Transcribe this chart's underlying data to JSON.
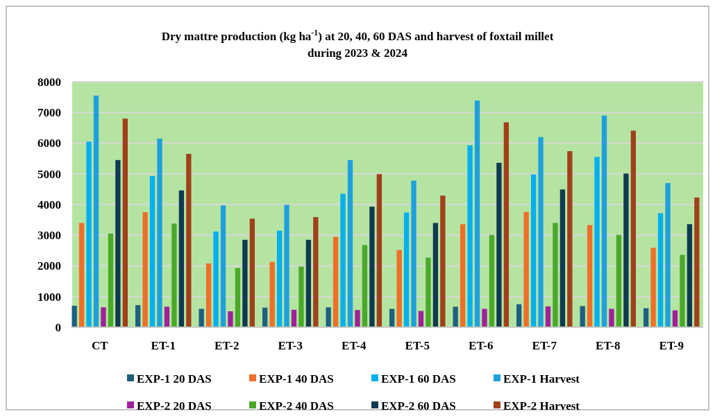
{
  "chart_data": {
    "type": "bar",
    "title": "Dry mattre production (kg ha$^{-1}$) at 20, 40, 60 DAS and harvest of foxtail millet during 2023 & 2024",
    "categories": [
      "CT",
      "ET-1",
      "ET-2",
      "ET-3",
      "ET-4",
      "ET-5",
      "ET-6",
      "ET-7",
      "ET-8",
      "ET-9"
    ],
    "series": [
      {
        "name": "EXP-1 20 DAS",
        "color": "#1f5f80",
        "values": [
          700,
          720,
          600,
          640,
          650,
          600,
          670,
          750,
          690,
          620
        ]
      },
      {
        "name": "EXP-1 40 DAS",
        "color": "#ed6f2a",
        "values": [
          3400,
          3750,
          2080,
          2130,
          2950,
          2520,
          3360,
          3760,
          3330,
          2590
        ]
      },
      {
        "name": "EXP-1 60 DAS",
        "color": "#00b0f0",
        "values": [
          6050,
          4930,
          3120,
          3150,
          4350,
          3740,
          5930,
          4980,
          5550,
          3720
        ]
      },
      {
        "name": "EXP-1 Harvest",
        "color": "#1fa0dc",
        "values": [
          7550,
          6150,
          3970,
          3990,
          5450,
          4780,
          7390,
          6200,
          6900,
          4700
        ]
      },
      {
        "name": "EXP-2 20 DAS",
        "color": "#a0209a",
        "values": [
          650,
          670,
          520,
          570,
          560,
          530,
          600,
          680,
          600,
          550
        ]
      },
      {
        "name": "EXP-2 40 DAS",
        "color": "#4aa82a",
        "values": [
          3050,
          3380,
          1930,
          1980,
          2680,
          2270,
          3010,
          3400,
          3010,
          2360
        ]
      },
      {
        "name": "EXP-2 60 DAS",
        "color": "#0f3a50",
        "values": [
          5450,
          4460,
          2850,
          2850,
          3930,
          3400,
          5360,
          4490,
          5010,
          3360
        ]
      },
      {
        "name": "EXP-2 Harvest",
        "color": "#a0401a",
        "values": [
          6800,
          5650,
          3540,
          3590,
          4990,
          4290,
          6680,
          5740,
          6410,
          4230
        ]
      }
    ],
    "ylim": [
      0,
      8000
    ],
    "yticks": [
      0,
      1000,
      2000,
      3000,
      4000,
      5000,
      6000,
      7000,
      8000
    ],
    "grid": "y",
    "legend": "bottom"
  }
}
